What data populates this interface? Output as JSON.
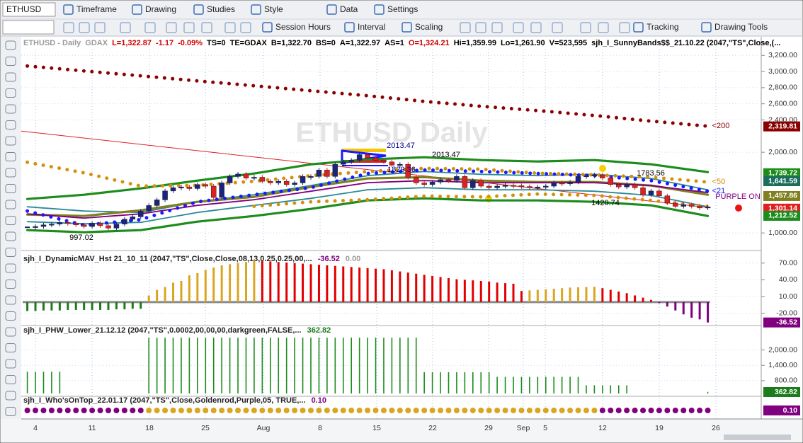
{
  "toolbar": {
    "symbol": "ETHUSD",
    "menu": [
      "Timeframe",
      "Drawing",
      "Studies",
      "Style",
      "Data",
      "Settings"
    ],
    "tools": [
      "Session Hours",
      "Interval",
      "Scaling",
      "Tracking",
      "Drawing Tools"
    ]
  },
  "header": {
    "items": [
      {
        "text": "ETHUSD - Daily",
        "color": "#9a9a9a"
      },
      {
        "text": "GDAX",
        "color": "#9a9a9a"
      },
      {
        "text": "L=1,322.87",
        "color": "#d00000"
      },
      {
        "text": "-1.17",
        "color": "#d00000"
      },
      {
        "text": "-0.09%",
        "color": "#d00000"
      },
      {
        "text": "TS=0",
        "color": "#000000"
      },
      {
        "text": "TE=GDAX",
        "color": "#000000"
      },
      {
        "text": "B=1,322.70",
        "color": "#000000"
      },
      {
        "text": "BS=0",
        "color": "#000000"
      },
      {
        "text": "A=1,322.97",
        "color": "#000000"
      },
      {
        "text": "AS=1",
        "color": "#000000"
      },
      {
        "text": "O=1,324.21",
        "color": "#d00000"
      },
      {
        "text": "Hi=1,359.99",
        "color": "#000000"
      },
      {
        "text": "Lo=1,261.90",
        "color": "#000000"
      },
      {
        "text": "V=523,595",
        "color": "#000000"
      },
      {
        "text": "sjh_I_SunnyBands$$_21.10.22 (2047,\"TS\",Close,(...",
        "color": "#000000"
      }
    ]
  },
  "watermark": "ETHUSD Daily",
  "x_axis": {
    "labels": [
      "4",
      "11",
      "18",
      "25",
      "Aug",
      "8",
      "15",
      "22",
      "29",
      "Sep",
      "5",
      "12",
      "19",
      "26"
    ]
  },
  "chart_data": [
    {
      "type": "candlestick",
      "up_color": "#1a237e",
      "down_color": "#e02020",
      "values": [
        1070,
        1080,
        1100,
        1110,
        1130,
        1120,
        1100,
        1080,
        1120,
        1090,
        1060,
        1110,
        1170,
        1200,
        1270,
        1340,
        1410,
        1520,
        1560,
        1570,
        1550,
        1600,
        1580,
        1440,
        1620,
        1700,
        1730,
        1680,
        1690,
        1640,
        1620,
        1640,
        1600,
        1620,
        1700,
        1700,
        1780,
        1700,
        1850,
        1880,
        1900,
        1970,
        1930,
        1900,
        1880,
        1840,
        1850,
        1690,
        1620,
        1600,
        1630,
        1660,
        1650,
        1700,
        1560,
        1650,
        1580,
        1560,
        1580,
        1590,
        1585,
        1575,
        1560,
        1570,
        1580,
        1620,
        1610,
        1630,
        1700,
        1710,
        1720,
        1680,
        1600,
        1570,
        1600,
        1560,
        1470,
        1520,
        1460,
        1370,
        1330,
        1350,
        1330,
        1310,
        1322.87
      ],
      "ylim": [
        800,
        3430
      ],
      "yticks": [
        {
          "value": 3200,
          "label": "3,200.00"
        },
        {
          "value": 3000,
          "label": "3,000.00"
        },
        {
          "value": 2800,
          "label": "2,800.00"
        },
        {
          "value": 2600,
          "label": "2,600.00"
        },
        {
          "value": 2400,
          "label": "2,400.00"
        },
        {
          "value": 2000,
          "label": "2,000.00"
        },
        {
          "value": 1000,
          "label": "1,000.00"
        }
      ],
      "series": [
        {
          "color": "#8b0000",
          "style": "dots",
          "label": "<200",
          "values": [
            3068,
            3007,
            2946,
            2884,
            2823,
            2761,
            2700,
            2630,
            2569,
            2516,
            2455,
            2385,
            2323
          ]
        },
        {
          "color": "#1c8c1c",
          "style": "thick",
          "values": [
            1421,
            1473,
            1552,
            1649,
            1736,
            1850,
            1911,
            1938,
            1903,
            1885,
            1903,
            1850,
            1754
          ]
        },
        {
          "color": "#1c8c1c",
          "style": "thick",
          "values": [
            1035,
            1009,
            1035,
            1140,
            1210,
            1298,
            1403,
            1429,
            1403,
            1403,
            1386,
            1342,
            1210
          ]
        },
        {
          "color": "#2a8a96",
          "style": "line",
          "values": [
            1324,
            1272,
            1254,
            1386,
            1473,
            1587,
            1710,
            1762,
            1727,
            1710,
            1727,
            1675,
            1535
          ]
        },
        {
          "color": "#2a8a96",
          "style": "line",
          "values": [
            1140,
            1114,
            1131,
            1254,
            1342,
            1429,
            1535,
            1561,
            1535,
            1535,
            1517,
            1465,
            1324
          ]
        },
        {
          "color": "#808020",
          "style": "thick",
          "values": [
            1228,
            1210,
            1280,
            1386,
            1447,
            1570,
            1675,
            1692,
            1649,
            1631,
            1631,
            1587,
            1473
          ]
        },
        {
          "color": "#800080",
          "style": "line",
          "values": [
            1237,
            1184,
            1237,
            1342,
            1412,
            1517,
            1622,
            1649,
            1622,
            1622,
            1622,
            1587,
            1500
          ]
        },
        {
          "color": "#d4900c",
          "style": "dots",
          "label": "<50",
          "values": [
            1876,
            1745,
            1580,
            1590,
            1640,
            1710,
            1760,
            1800,
            1790,
            1740,
            1720,
            1690,
            1630
          ]
        },
        {
          "color": "#1a1aff",
          "style": "dots",
          "label": "<21",
          "values": [
            1272,
            1096,
            1166,
            1386,
            1473,
            1561,
            1736,
            1780,
            1762,
            1736,
            1710,
            1649,
            1517
          ]
        },
        {
          "color": "#d4900c",
          "style": "dots",
          "values": [
            null,
            null,
            null,
            null,
            1330,
            1386,
            1412,
            1456,
            1447,
            1482,
            1465,
            1403,
            1324
          ]
        }
      ],
      "trendline": {
        "color": "#e02020",
        "values": [
          2262,
          1316
        ]
      },
      "price_labels": [
        {
          "value": 2319.81,
          "label": "2,319.81",
          "color": "#8b0000"
        },
        {
          "value": 1739.72,
          "label": "1,739.72",
          "color": "#1c8c1c"
        },
        {
          "value": 1641.59,
          "label": "1,641.59",
          "color": "#1a6e5a"
        },
        {
          "value": 1457.86,
          "label": "1,457.86",
          "color": "#808020"
        },
        {
          "value": 1301.14,
          "label": "1,301.14",
          "color": "#e02020"
        },
        {
          "value": 1212.52,
          "label": "1,212.52",
          "color": "#1c8c1c"
        }
      ],
      "annotations": [
        "2013.47",
        "2013.47",
        "1829.36",
        "1783.56",
        "1420.74",
        "997.02",
        "PURPLE ON"
      ]
    },
    {
      "type": "histogram",
      "title": "sjh_I_DynamicMAV_Hst 21_10_11 (2047,\"TS\",Close,Close,08,13,0.25,0.25,00,...",
      "readouts": [
        {
          "text": "-36.52",
          "color": "#800080"
        },
        {
          "text": "0.00",
          "color": "#9a9a9a"
        }
      ],
      "colors": {
        "rising": "#daa520",
        "falling": "#e00000",
        "negative_rising": "#1c7c1c",
        "negative_falling": "#800080"
      },
      "values": [
        -16,
        -16,
        -15,
        -15,
        -15,
        -14,
        -14,
        -14,
        -14,
        -14,
        -14,
        -13,
        -13,
        -12,
        -12,
        12,
        22,
        27,
        35,
        38,
        48,
        52,
        58,
        62,
        66,
        68,
        70,
        72,
        75,
        74,
        73,
        72,
        71,
        70,
        69,
        68,
        67,
        66,
        65,
        64,
        63,
        62,
        61,
        60,
        59,
        57,
        55,
        53,
        51,
        49,
        47,
        45,
        43,
        41,
        40,
        39,
        38,
        37,
        35,
        34,
        33,
        20,
        21,
        22,
        23,
        24,
        25,
        26,
        26.5,
        27,
        27.5,
        25,
        22,
        19,
        16,
        12,
        8,
        4,
        -2,
        -8,
        -15,
        -22,
        -28,
        -31,
        -36.52
      ],
      "ylim": [
        -42,
        90
      ],
      "yticks": [
        {
          "value": 70,
          "label": "70.00"
        },
        {
          "value": 40,
          "label": "40.00"
        },
        {
          "value": 10,
          "label": "10.00"
        },
        {
          "value": -20,
          "label": "-20.00"
        }
      ],
      "last_label": {
        "value": -36.52,
        "label": "-36.52",
        "color": "#800080"
      }
    },
    {
      "type": "stick",
      "title": "sjh_I_PHW_Lower_21.12.12 (2047,\"TS\",0.0002,00,00,00,darkgreen,FALSE,...",
      "readouts": [
        {
          "text": "362.82",
          "color": "#1c7c1c"
        }
      ],
      "color": "#1c8c1c",
      "values": [
        1150,
        1150,
        1150,
        1150,
        1150,
        null,
        null,
        null,
        null,
        null,
        null,
        null,
        null,
        null,
        null,
        2480,
        2480,
        2480,
        2480,
        2480,
        2480,
        2480,
        2480,
        2480,
        2480,
        2480,
        2480,
        2480,
        2480,
        2480,
        2480,
        2480,
        2480,
        2480,
        2480,
        2480,
        2480,
        2480,
        2480,
        2480,
        2480,
        2480,
        2480,
        2480,
        2480,
        2480,
        2480,
        2480,
        2480,
        1130,
        1130,
        1130,
        1130,
        1130,
        1130,
        1130,
        1130,
        1130,
        950,
        950,
        950,
        950,
        950,
        950,
        950,
        950,
        950,
        950,
        950,
        620,
        620,
        620,
        620,
        620,
        620,
        null,
        null,
        null,
        null,
        null,
        null,
        null,
        null,
        null,
        362.82
      ],
      "ylim": [
        300,
        2900
      ],
      "yticks": [
        {
          "value": 2000,
          "label": "2,000.00"
        },
        {
          "value": 1400,
          "label": "1,400.00"
        },
        {
          "value": 800,
          "label": "800.00"
        }
      ],
      "last_label": {
        "value": 362.82,
        "label": "362.82",
        "color": "#1c7c1c"
      }
    },
    {
      "type": "dots",
      "title": "sjh_I_Who'sOnTop_22.01.17 (2047,\"TS\",Close,Goldenrod,Purple,05, TRUE,...",
      "readouts": [
        {
          "text": "0.10",
          "color": "#800080"
        }
      ],
      "colors": [
        "#800080",
        "#800080",
        "#800080",
        "#800080",
        "#800080",
        "#800080",
        "#800080",
        "#800080",
        "#800080",
        "#800080",
        "#800080",
        "#800080",
        "#800080",
        "#800080",
        "#800080",
        "#daa520",
        "#daa520",
        "#daa520",
        "#daa520",
        "#daa520",
        "#daa520",
        "#daa520",
        "#daa520",
        "#daa520",
        "#daa520",
        "#daa520",
        "#daa520",
        "#daa520",
        "#daa520",
        "#daa520",
        "#daa520",
        "#daa520",
        "#daa520",
        "#daa520",
        "#daa520",
        "#daa520",
        "#daa520",
        "#daa520",
        "#daa520",
        "#daa520",
        "#daa520",
        "#daa520",
        "#daa520",
        "#daa520",
        "#daa520",
        "#daa520",
        "#daa520",
        "#daa520",
        "#daa520",
        "#daa520",
        "#daa520",
        "#daa520",
        "#daa520",
        "#daa520",
        "#daa520",
        "#daa520",
        "#daa520",
        "#daa520",
        "#daa520",
        "#daa520",
        "#daa520",
        "#daa520",
        "#daa520",
        "#daa520",
        "#daa520",
        "#daa520",
        "#daa520",
        "#daa520",
        "#daa520",
        "#daa520",
        "#daa520",
        "#800080",
        "#800080",
        "#800080",
        "#800080",
        "#800080",
        "#800080",
        "#800080",
        "#800080",
        "#800080",
        "#800080",
        "#800080",
        "#800080",
        "#800080",
        "#800080"
      ],
      "last_label": {
        "value": 0.1,
        "label": "0.10",
        "color": "#800080"
      }
    }
  ]
}
